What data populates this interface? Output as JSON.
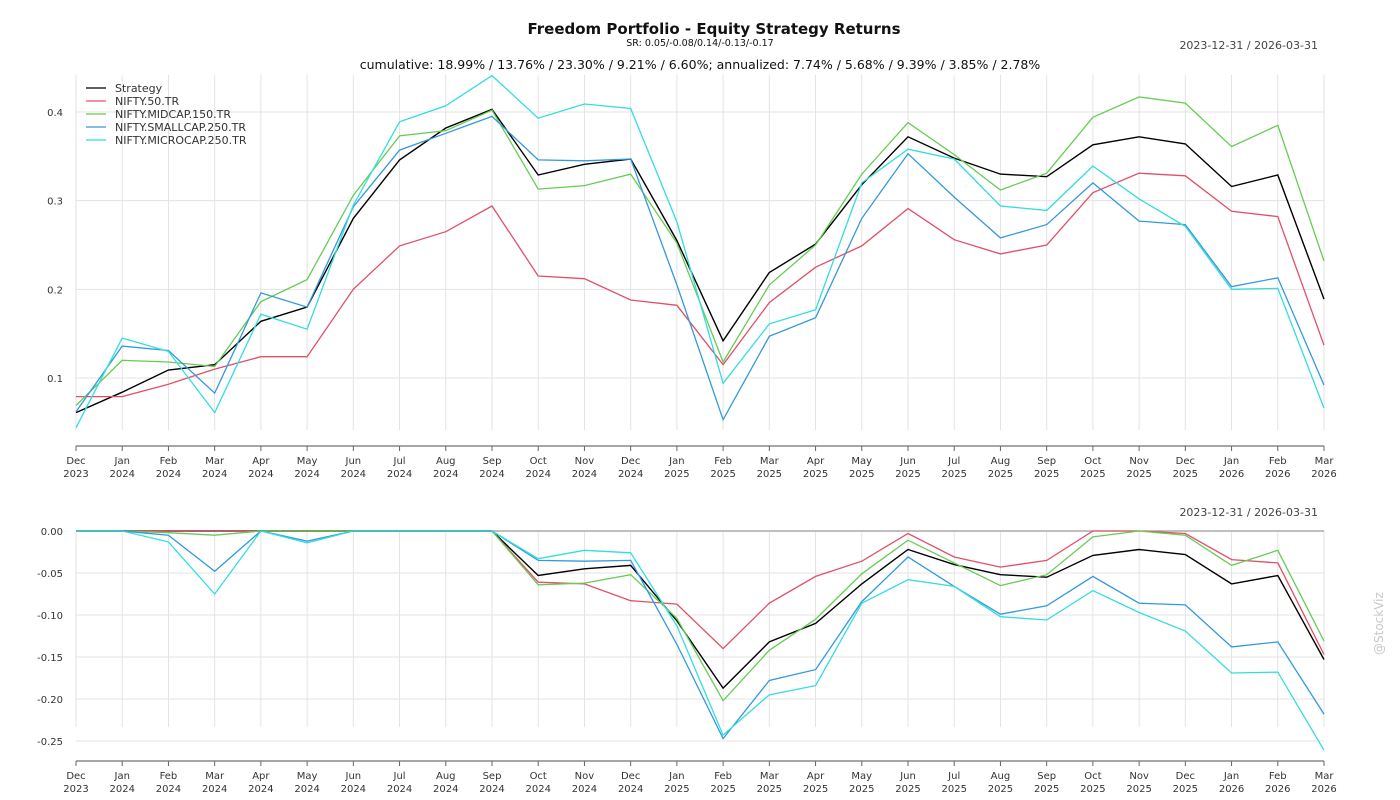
{
  "header": {
    "title": "Freedom Portfolio - Equity Strategy Returns",
    "subtitle": "SR: 0.05/-0.08/0.14/-0.13/-0.17",
    "stats": "cumulative: 18.99% / 13.76% / 23.30% / 9.21% / 6.60%; annualized: 7.74% / 5.68% / 9.39% / 3.85% / 2.78%",
    "date_range_top": "2023-12-31 / 2026-03-31",
    "date_range_bottom": "2023-12-31 / 2026-03-31",
    "watermark": "@StockViz"
  },
  "chart_data": [
    {
      "type": "line",
      "title": "Freedom Portfolio - Equity Strategy Returns",
      "panel": "cumulative-returns",
      "xlabel": "",
      "ylabel": "",
      "ylim": [
        0.04,
        0.44
      ],
      "yticks": [
        0.1,
        0.2,
        0.3,
        0.4
      ],
      "ytick_labels": [
        "0.1",
        "0.2",
        "0.3",
        "0.4"
      ],
      "grid": true,
      "legend_position": "top-left",
      "x": [
        "Dec 2023",
        "Jan 2024",
        "Feb 2024",
        "Mar 2024",
        "Apr 2024",
        "May 2024",
        "Jun 2024",
        "Jul 2024",
        "Aug 2024",
        "Sep 2024",
        "Oct 2024",
        "Nov 2024",
        "Dec 2024",
        "Jan 2025",
        "Feb 2025",
        "Mar 2025",
        "Apr 2025",
        "May 2025",
        "Jun 2025",
        "Jul 2025",
        "Aug 2025",
        "Sep 2025",
        "Oct 2025",
        "Nov 2025",
        "Dec 2025",
        "Jan 2026",
        "Feb 2026",
        "Mar 2026"
      ],
      "x_tick_labels": [
        [
          "Dec",
          "2023"
        ],
        [
          "Jan",
          "2024"
        ],
        [
          "Feb",
          "2024"
        ],
        [
          "Mar",
          "2024"
        ],
        [
          "Apr",
          "2024"
        ],
        [
          "May",
          "2024"
        ],
        [
          "Jun",
          "2024"
        ],
        [
          "Jul",
          "2024"
        ],
        [
          "Aug",
          "2024"
        ],
        [
          "Sep",
          "2024"
        ],
        [
          "Oct",
          "2024"
        ],
        [
          "Nov",
          "2024"
        ],
        [
          "Dec",
          "2024"
        ],
        [
          "Jan",
          "2025"
        ],
        [
          "Feb",
          "2025"
        ],
        [
          "Mar",
          "2025"
        ],
        [
          "Apr",
          "2025"
        ],
        [
          "May",
          "2025"
        ],
        [
          "Jun",
          "2025"
        ],
        [
          "Jul",
          "2025"
        ],
        [
          "Aug",
          "2025"
        ],
        [
          "Sep",
          "2025"
        ],
        [
          "Oct",
          "2025"
        ],
        [
          "Nov",
          "2025"
        ],
        [
          "Dec",
          "2025"
        ],
        [
          "Jan",
          "2026"
        ],
        [
          "Feb",
          "2026"
        ],
        [
          "Mar",
          "2026"
        ]
      ],
      "series": [
        {
          "name": "Strategy",
          "color": "#000000",
          "values": [
            0.061,
            0.084,
            0.109,
            0.115,
            0.164,
            0.18,
            0.28,
            0.346,
            0.382,
            0.403,
            0.329,
            0.341,
            0.347,
            0.255,
            0.142,
            0.219,
            0.251,
            0.318,
            0.372,
            0.348,
            0.33,
            0.327,
            0.363,
            0.372,
            0.364,
            0.316,
            0.329,
            0.189
          ]
        },
        {
          "name": "NIFTY.50.TR",
          "color": "#e05068",
          "values": [
            0.079,
            0.079,
            0.093,
            0.11,
            0.124,
            0.124,
            0.2,
            0.249,
            0.265,
            0.294,
            0.215,
            0.212,
            0.188,
            0.182,
            0.115,
            0.185,
            0.225,
            0.249,
            0.291,
            0.256,
            0.24,
            0.25,
            0.309,
            0.331,
            0.328,
            0.288,
            0.282,
            0.137
          ]
        },
        {
          "name": "NIFTY.MIDCAP.150.TR",
          "color": "#66cc55",
          "values": [
            0.069,
            0.12,
            0.118,
            0.113,
            0.186,
            0.211,
            0.306,
            0.373,
            0.379,
            0.402,
            0.313,
            0.317,
            0.33,
            0.252,
            0.118,
            0.205,
            0.25,
            0.33,
            0.388,
            0.352,
            0.312,
            0.331,
            0.394,
            0.417,
            0.41,
            0.361,
            0.385,
            0.232
          ]
        },
        {
          "name": "NIFTY.SMALLCAP.250.TR",
          "color": "#3399dd",
          "values": [
            0.062,
            0.136,
            0.131,
            0.083,
            0.196,
            0.18,
            0.293,
            0.357,
            0.376,
            0.395,
            0.346,
            0.345,
            0.347,
            0.205,
            0.053,
            0.147,
            0.168,
            0.28,
            0.353,
            0.304,
            0.258,
            0.273,
            0.32,
            0.277,
            0.273,
            0.203,
            0.213,
            0.092
          ]
        },
        {
          "name": "NIFTY.MICROCAP.250.TR",
          "color": "#33dddd",
          "values": [
            0.044,
            0.145,
            0.13,
            0.061,
            0.172,
            0.155,
            0.295,
            0.389,
            0.407,
            0.441,
            0.393,
            0.409,
            0.404,
            0.276,
            0.094,
            0.161,
            0.177,
            0.32,
            0.358,
            0.347,
            0.294,
            0.289,
            0.339,
            0.302,
            0.271,
            0.2,
            0.201,
            0.066
          ]
        }
      ]
    },
    {
      "type": "line",
      "title": "",
      "panel": "drawdown",
      "xlabel": "",
      "ylabel": "",
      "ylim": [
        -0.265,
        0.0
      ],
      "yticks": [
        0.0,
        -0.05,
        -0.1,
        -0.15,
        -0.2,
        -0.25
      ],
      "ytick_labels": [
        "0.00",
        "-0.05",
        "-0.10",
        "-0.15",
        "-0.20",
        "-0.25"
      ],
      "grid": true,
      "x": [
        "Dec 2023",
        "Jan 2024",
        "Feb 2024",
        "Mar 2024",
        "Apr 2024",
        "May 2024",
        "Jun 2024",
        "Jul 2024",
        "Aug 2024",
        "Sep 2024",
        "Oct 2024",
        "Nov 2024",
        "Dec 2024",
        "Jan 2025",
        "Feb 2025",
        "Mar 2025",
        "Apr 2025",
        "May 2025",
        "Jun 2025",
        "Jul 2025",
        "Aug 2025",
        "Sep 2025",
        "Oct 2025",
        "Nov 2025",
        "Dec 2025",
        "Jan 2026",
        "Feb 2026",
        "Mar 2026"
      ],
      "x_tick_labels": [
        [
          "Dec",
          "2023"
        ],
        [
          "Jan",
          "2024"
        ],
        [
          "Feb",
          "2024"
        ],
        [
          "Mar",
          "2024"
        ],
        [
          "Apr",
          "2024"
        ],
        [
          "May",
          "2024"
        ],
        [
          "Jun",
          "2024"
        ],
        [
          "Jul",
          "2024"
        ],
        [
          "Aug",
          "2024"
        ],
        [
          "Sep",
          "2024"
        ],
        [
          "Oct",
          "2024"
        ],
        [
          "Nov",
          "2024"
        ],
        [
          "Dec",
          "2024"
        ],
        [
          "Jan",
          "2025"
        ],
        [
          "Feb",
          "2025"
        ],
        [
          "Mar",
          "2025"
        ],
        [
          "Apr",
          "2025"
        ],
        [
          "May",
          "2025"
        ],
        [
          "Jun",
          "2025"
        ],
        [
          "Jul",
          "2025"
        ],
        [
          "Aug",
          "2025"
        ],
        [
          "Sep",
          "2025"
        ],
        [
          "Oct",
          "2025"
        ],
        [
          "Nov",
          "2025"
        ],
        [
          "Dec",
          "2025"
        ],
        [
          "Jan",
          "2026"
        ],
        [
          "Feb",
          "2026"
        ],
        [
          "Mar",
          "2026"
        ]
      ],
      "series": [
        {
          "name": "Strategy",
          "color": "#000000",
          "values": [
            0,
            0,
            0,
            0,
            0,
            0,
            0,
            0,
            0,
            0,
            -0.053,
            -0.045,
            -0.041,
            -0.107,
            -0.187,
            -0.132,
            -0.11,
            -0.063,
            -0.022,
            -0.04,
            -0.052,
            -0.055,
            -0.029,
            -0.022,
            -0.028,
            -0.063,
            -0.053,
            -0.153
          ]
        },
        {
          "name": "NIFTY.50.TR",
          "color": "#e05068",
          "values": [
            0,
            0,
            0,
            0,
            0,
            0,
            0,
            0,
            0,
            0,
            -0.061,
            -0.063,
            -0.083,
            -0.087,
            -0.14,
            -0.086,
            -0.054,
            -0.036,
            -0.003,
            -0.031,
            -0.043,
            -0.035,
            0,
            0,
            -0.003,
            -0.034,
            -0.038,
            -0.147
          ]
        },
        {
          "name": "NIFTY.MIDCAP.150.TR",
          "color": "#66cc55",
          "values": [
            0,
            0,
            -0.002,
            -0.005,
            0,
            0,
            0,
            0,
            0,
            0,
            -0.064,
            -0.062,
            -0.052,
            -0.104,
            -0.202,
            -0.142,
            -0.105,
            -0.051,
            -0.011,
            -0.038,
            -0.065,
            -0.052,
            -0.007,
            0,
            -0.005,
            -0.041,
            -0.023,
            -0.131
          ]
        },
        {
          "name": "NIFTY.SMALLCAP.250.TR",
          "color": "#3399dd",
          "values": [
            0,
            0,
            -0.005,
            -0.048,
            0,
            -0.012,
            0,
            0,
            0,
            0,
            -0.035,
            -0.036,
            -0.035,
            -0.135,
            -0.247,
            -0.178,
            -0.165,
            -0.084,
            -0.031,
            -0.066,
            -0.099,
            -0.089,
            -0.054,
            -0.086,
            -0.088,
            -0.138,
            -0.132,
            -0.218
          ]
        },
        {
          "name": "NIFTY.MICROCAP.250.TR",
          "color": "#33dddd",
          "values": [
            0,
            0,
            -0.013,
            -0.075,
            0,
            -0.014,
            0,
            0,
            0,
            0,
            -0.033,
            -0.023,
            -0.026,
            -0.113,
            -0.243,
            -0.195,
            -0.184,
            -0.086,
            -0.058,
            -0.066,
            -0.102,
            -0.106,
            -0.071,
            -0.097,
            -0.119,
            -0.169,
            -0.168,
            -0.261
          ]
        }
      ]
    }
  ]
}
